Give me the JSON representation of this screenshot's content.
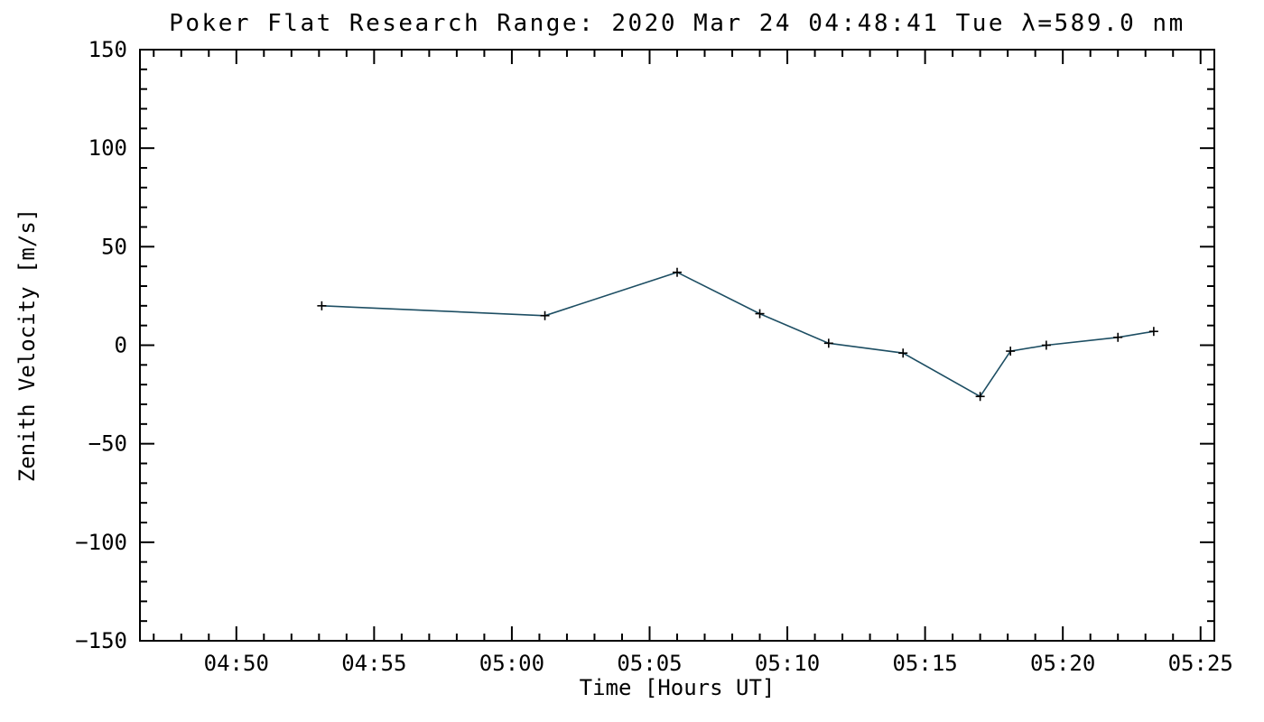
{
  "page": {
    "background": "#ffffff"
  },
  "chart_data": {
    "type": "line",
    "title": "Poker Flat Research Range: 2020 Mar 24 04:48:41 Tue λ=589.0 nm",
    "xlabel": "Time [Hours UT]",
    "ylabel": "Zenith Velocity [m/s]",
    "grid": false,
    "legend": false,
    "tick_direction": "in",
    "axis_color": "#000000",
    "x_axis": {
      "unit": "minutes after 04:00 UT",
      "lim": [
        46.5,
        85.5
      ],
      "major_ticks": [
        {
          "value": 50,
          "label": "04:50"
        },
        {
          "value": 55,
          "label": "04:55"
        },
        {
          "value": 60,
          "label": "05:00"
        },
        {
          "value": 65,
          "label": "05:05"
        },
        {
          "value": 70,
          "label": "05:10"
        },
        {
          "value": 75,
          "label": "05:15"
        },
        {
          "value": 80,
          "label": "05:20"
        },
        {
          "value": 85,
          "label": "05:25"
        }
      ],
      "minor_step": 1
    },
    "y_axis": {
      "lim": [
        -150,
        150
      ],
      "major_ticks": [
        {
          "value": -150,
          "label": "−150"
        },
        {
          "value": -100,
          "label": "−100"
        },
        {
          "value": -50,
          "label": "−50"
        },
        {
          "value": 0,
          "label": "0"
        },
        {
          "value": 50,
          "label": "50"
        },
        {
          "value": 100,
          "label": "100"
        },
        {
          "value": 150,
          "label": "150"
        }
      ],
      "minor_step": 10
    },
    "series": [
      {
        "name": "zenith-velocity",
        "line_color": "#1d4e63",
        "marker": "plus",
        "marker_color": "#000000",
        "points": [
          {
            "ut": "04:53",
            "t": 53.1,
            "v": 20
          },
          {
            "ut": "05:01",
            "t": 61.2,
            "v": 15
          },
          {
            "ut": "05:06",
            "t": 66.0,
            "v": 37
          },
          {
            "ut": "05:09",
            "t": 69.0,
            "v": 16
          },
          {
            "ut": "05:12",
            "t": 71.5,
            "v": 1
          },
          {
            "ut": "05:14",
            "t": 74.2,
            "v": -4
          },
          {
            "ut": "05:17",
            "t": 77.0,
            "v": -26
          },
          {
            "ut": "05:18",
            "t": 78.1,
            "v": -3
          },
          {
            "ut": "05:19",
            "t": 79.4,
            "v": 0
          },
          {
            "ut": "05:22",
            "t": 82.0,
            "v": 4
          },
          {
            "ut": "05:23",
            "t": 83.3,
            "v": 7
          }
        ]
      }
    ]
  }
}
